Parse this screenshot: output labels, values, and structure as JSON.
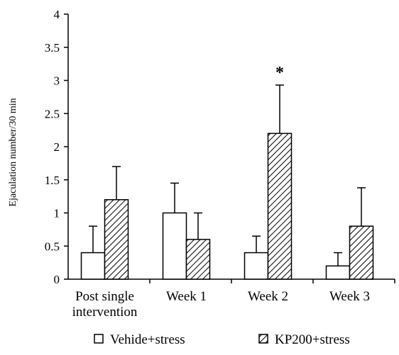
{
  "chart_data": {
    "type": "bar",
    "ylabel": "Ejaculation number/30 min",
    "xlabel": "",
    "ylim": [
      0,
      4
    ],
    "yticks": [
      "0",
      "0.5",
      "1",
      "1.5",
      "2",
      "2.5",
      "3",
      "3.5",
      "4"
    ],
    "yticks_values": [
      0,
      0.5,
      1,
      1.5,
      2,
      2.5,
      3,
      3.5,
      4
    ],
    "categories": [
      [
        "Post single",
        "intervention"
      ],
      [
        "Week 1"
      ],
      [
        "Week 2"
      ],
      [
        "Week 3"
      ]
    ],
    "series": [
      {
        "name": "Vehide+stress",
        "values": [
          0.4,
          1.0,
          0.4,
          0.2
        ],
        "errors": [
          0.4,
          0.45,
          0.25,
          0.2
        ],
        "fill": "#ffffff"
      },
      {
        "name": "KP200+stress",
        "values": [
          1.2,
          0.6,
          2.2,
          0.8
        ],
        "errors": [
          0.5,
          0.4,
          0.73,
          0.58
        ],
        "fill": "hatch"
      }
    ],
    "annotations": [
      {
        "category_index": 2,
        "series_index": 1,
        "text": "*"
      }
    ],
    "grid": false,
    "legend_position": "bottom"
  }
}
